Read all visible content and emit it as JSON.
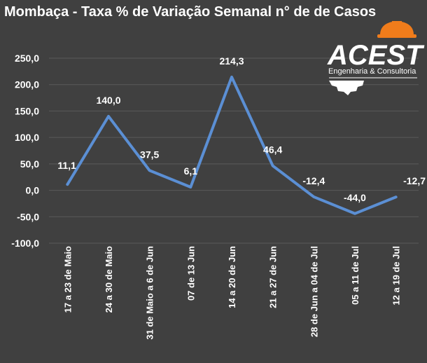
{
  "title": "Mombaça - Taxa % de Variação Semanal n° de de Casos",
  "logo": {
    "name": "ACEST",
    "tagline": "Engenharia & Consultoria",
    "accent": "#f07c1b"
  },
  "colors": {
    "background": "#404040",
    "line": "#5b8fd4",
    "grid": "#5a5a5a",
    "text": "#ffffff"
  },
  "chart_data": {
    "type": "line",
    "title": "Mombaça - Taxa % de Variação Semanal n° de de Casos",
    "categories": [
      "17 a 23 de Maio",
      "24 a 30 de Maio",
      "31 de Maio a 6 de Jun",
      "07 de 13 Jun",
      "14 a 20 de Jun",
      "21 a 27 de Jun",
      "28 de Jun a 04 de Jul",
      "05 a 11 de Jul",
      "12 a 19 de Jul"
    ],
    "values": [
      11.1,
      140.0,
      37.5,
      6.1,
      214.3,
      46.4,
      -12.4,
      -44.0,
      -12.7
    ],
    "value_labels": [
      "11,1",
      "140,0",
      "37,5",
      "6,1",
      "214,3",
      "46,4",
      "-12,4",
      "-44,0",
      "-12,7"
    ],
    "ylim": [
      -100,
      250
    ],
    "yticks": [
      250,
      200,
      150,
      100,
      50,
      0,
      -50,
      -100
    ],
    "ytick_labels": [
      "250,0",
      "200,0",
      "150,0",
      "100,0",
      "50,0",
      "0,0",
      "-50,0",
      "-100,0"
    ],
    "xlabel": "",
    "ylabel": "",
    "grid": true,
    "legend": "none"
  }
}
